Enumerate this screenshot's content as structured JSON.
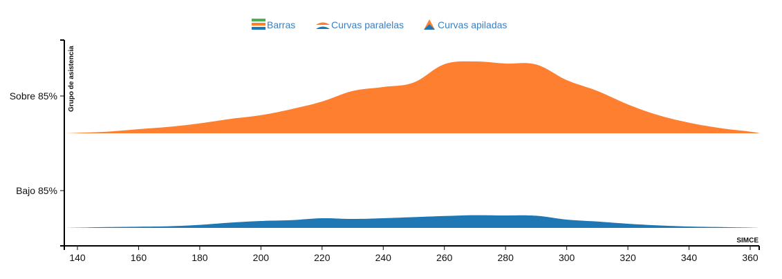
{
  "legend": {
    "items": [
      {
        "label": "Barras",
        "icon": "bars-icon"
      },
      {
        "label": "Curvas paralelas",
        "icon": "parallel-curves-icon"
      },
      {
        "label": "Curvas apiladas",
        "icon": "stacked-curves-icon"
      }
    ]
  },
  "colors": {
    "sobre": "#fd7f2f",
    "bajo": "#1f77b4",
    "legend_green": "#4caf50",
    "legend_text": "#3a7fc1"
  },
  "chart_data": {
    "type": "area",
    "xlabel": "SIMCE",
    "ylabel": "Grupo de asistencia",
    "xlim": [
      130,
      370
    ],
    "x_ticks": [
      140,
      160,
      180,
      200,
      220,
      240,
      260,
      280,
      300,
      320,
      340,
      360
    ],
    "categories": [
      "Sobre 85%",
      "Bajo 85%"
    ],
    "x": [
      131,
      140,
      150,
      160,
      170,
      180,
      190,
      200,
      210,
      220,
      230,
      240,
      250,
      260,
      270,
      280,
      290,
      300,
      310,
      320,
      330,
      340,
      350,
      360,
      370
    ],
    "series": [
      {
        "name": "Sobre 85%",
        "values": [
          0.0,
          0.3,
          1.2,
          3.0,
          4.7,
          7.2,
          10.4,
          13.1,
          17.5,
          23.0,
          30.6,
          33.5,
          36.8,
          50.0,
          52.0,
          50.5,
          49.8,
          38.5,
          30.7,
          20.9,
          13.1,
          7.7,
          3.8,
          1.2,
          0.1
        ]
      },
      {
        "name": "Bajo 85%",
        "values": [
          0.0,
          0.2,
          0.6,
          0.9,
          1.2,
          2.2,
          3.8,
          5.0,
          5.6,
          7.0,
          6.5,
          7.0,
          7.8,
          8.6,
          9.2,
          9.0,
          8.8,
          6.0,
          4.6,
          3.0,
          1.8,
          1.0,
          0.6,
          0.2,
          0.0
        ]
      }
    ]
  }
}
